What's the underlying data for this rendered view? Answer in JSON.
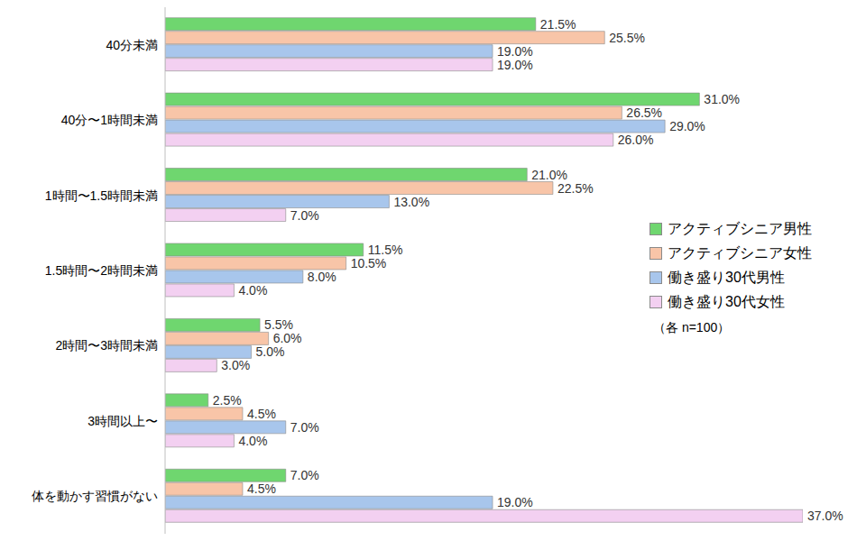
{
  "chart_data": {
    "type": "bar",
    "orientation": "horizontal",
    "data_labels": true,
    "tick_labels": "y",
    "legend": "right",
    "annotation": "（各 n=100）",
    "categories": [
      "40分未満",
      "40分〜1時間未満",
      "1時間〜1.5時間未満",
      "1.5時間〜2時間未満",
      "2時間〜3時間未満",
      "3時間以上〜",
      "体を動かす習慣がない"
    ],
    "xlim": [
      0,
      37
    ],
    "series": [
      {
        "name": "アクティブシニア男性",
        "color": "#6fd66f",
        "values": [
          21.5,
          31.0,
          21.0,
          11.5,
          5.5,
          2.5,
          7.0
        ],
        "value_labels": [
          "21.5%",
          "31.0%",
          "21.0%",
          "11.5%",
          "5.5%",
          "2.5%",
          "7.0%"
        ]
      },
      {
        "name": "アクティブシニア女性",
        "color": "#f8c5a8",
        "values": [
          25.5,
          26.5,
          22.5,
          10.5,
          6.0,
          4.5,
          4.5
        ],
        "value_labels": [
          "25.5%",
          "26.5%",
          "22.5%",
          "10.5%",
          "6.0%",
          "4.5%",
          "4.5%"
        ]
      },
      {
        "name": "働き盛り30代男性",
        "color": "#a8c6ec",
        "values": [
          19,
          29,
          13,
          8,
          5,
          7,
          19
        ],
        "value_labels": [
          "19.0%",
          "29.0%",
          "13.0%",
          "8.0%",
          "5.0%",
          "7.0%",
          "19.0%"
        ]
      },
      {
        "name": "働き盛り30代女性",
        "color": "#f3d0f1",
        "values": [
          19,
          26,
          7,
          4,
          3,
          4,
          37
        ],
        "value_labels": [
          "19.0%",
          "26.0%",
          "7.0%",
          "4.0%",
          "3.0%",
          "4.0%",
          "37.0%"
        ]
      }
    ]
  }
}
